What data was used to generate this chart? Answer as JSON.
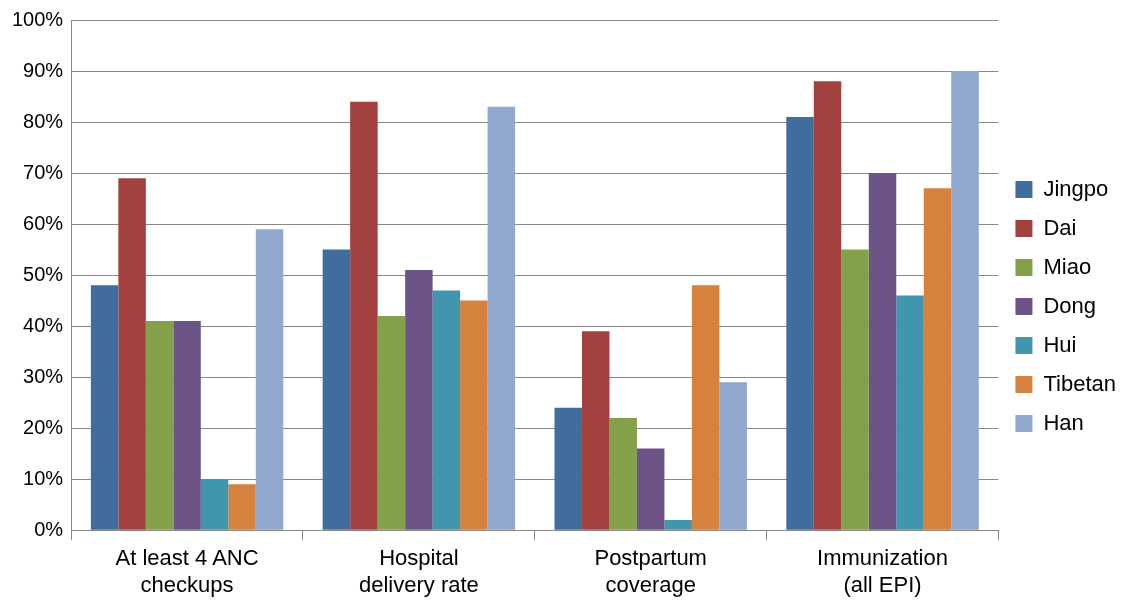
{
  "chart_data": {
    "type": "bar",
    "categories": [
      "At least 4 ANC\ncheckups",
      "Hospital\ndelivery rate",
      "Postpartum\ncoverage",
      "Immunization\n(all EPI)"
    ],
    "series": [
      {
        "name": "Jingpo",
        "color": "#416c9e",
        "values": [
          48,
          55,
          24,
          81
        ]
      },
      {
        "name": "Dai",
        "color": "#a2413e",
        "values": [
          69,
          84,
          39,
          88
        ]
      },
      {
        "name": "Miao",
        "color": "#83a14b",
        "values": [
          41,
          42,
          22,
          55
        ]
      },
      {
        "name": "Dong",
        "color": "#6c5489",
        "values": [
          41,
          51,
          16,
          70
        ]
      },
      {
        "name": "Hui",
        "color": "#3f96ad",
        "values": [
          10,
          47,
          2,
          46
        ]
      },
      {
        "name": "Tibetan",
        "color": "#d5823e",
        "values": [
          9,
          45,
          48,
          67
        ]
      },
      {
        "name": "Han",
        "color": "#91a8ce",
        "values": [
          59,
          83,
          29,
          90
        ]
      }
    ],
    "ylim": [
      0,
      100
    ],
    "yticks": [
      {
        "value": 0,
        "label": "0%"
      },
      {
        "value": 10,
        "label": "10%"
      },
      {
        "value": 20,
        "label": "20%"
      },
      {
        "value": 30,
        "label": "30%"
      },
      {
        "value": 40,
        "label": "40%"
      },
      {
        "value": 50,
        "label": "50%"
      },
      {
        "value": 60,
        "label": "60%"
      },
      {
        "value": 70,
        "label": "70%"
      },
      {
        "value": 80,
        "label": "80%"
      },
      {
        "value": 90,
        "label": "90%"
      },
      {
        "value": 100,
        "label": "100%"
      }
    ],
    "grid": "y",
    "legend": "right"
  }
}
